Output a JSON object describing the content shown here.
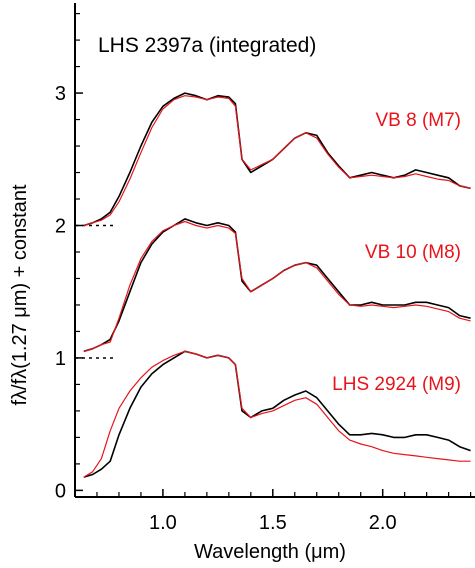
{
  "chart_data": {
    "type": "line",
    "title": "LHS 2397a (integrated)",
    "xlabel": "Wavelength (μm)",
    "ylabel": "fλ/fλ(1.27 μm) + constant",
    "xlim": [
      0.6,
      2.42
    ],
    "ylim": [
      -0.05,
      3.68
    ],
    "x_ticks": [
      1.0,
      1.5,
      2.0
    ],
    "x_tick_labels": [
      "1.0",
      "1.5",
      "2.0"
    ],
    "y_ticks": [
      0,
      1,
      2,
      3
    ],
    "y_tick_labels": [
      "0",
      "1",
      "2",
      "3"
    ],
    "grid": false,
    "legend": "none",
    "offsets": [
      2,
      1,
      0
    ],
    "colors": {
      "target": "#000000",
      "comparison": "#e8141b"
    },
    "annotations": [
      "VB 8 (M7)",
      "VB 10 (M8)",
      "LHS 2924 (M9)"
    ],
    "x": [
      0.64,
      0.68,
      0.72,
      0.76,
      0.8,
      0.85,
      0.9,
      0.95,
      1.0,
      1.05,
      1.1,
      1.15,
      1.2,
      1.25,
      1.3,
      1.33,
      1.36,
      1.4,
      1.45,
      1.5,
      1.55,
      1.6,
      1.65,
      1.7,
      1.75,
      1.8,
      1.85,
      1.9,
      1.95,
      2.0,
      2.05,
      2.1,
      2.15,
      2.2,
      2.25,
      2.3,
      2.35,
      2.4
    ],
    "series": [
      {
        "values": [
          0.0,
          0.02,
          0.05,
          0.1,
          0.22,
          0.4,
          0.6,
          0.78,
          0.9,
          0.96,
          1.0,
          0.98,
          0.95,
          0.98,
          0.97,
          0.92,
          0.5,
          0.4,
          0.45,
          0.5,
          0.58,
          0.66,
          0.7,
          0.68,
          0.55,
          0.45,
          0.36,
          0.38,
          0.4,
          0.38,
          0.36,
          0.38,
          0.42,
          0.4,
          0.38,
          0.36,
          0.3,
          0.28
        ]
      },
      {
        "values": [
          0.0,
          0.02,
          0.04,
          0.08,
          0.18,
          0.35,
          0.55,
          0.74,
          0.88,
          0.95,
          0.98,
          0.97,
          0.95,
          0.97,
          0.96,
          0.9,
          0.5,
          0.42,
          0.46,
          0.5,
          0.58,
          0.66,
          0.7,
          0.66,
          0.54,
          0.44,
          0.36,
          0.37,
          0.38,
          0.37,
          0.36,
          0.37,
          0.39,
          0.37,
          0.35,
          0.34,
          0.3,
          0.28
        ]
      },
      {
        "values": [
          0.05,
          0.07,
          0.1,
          0.14,
          0.28,
          0.5,
          0.72,
          0.86,
          0.95,
          1.0,
          1.05,
          1.02,
          1.0,
          1.02,
          1.0,
          0.95,
          0.58,
          0.5,
          0.55,
          0.6,
          0.66,
          0.7,
          0.72,
          0.7,
          0.6,
          0.5,
          0.4,
          0.4,
          0.42,
          0.4,
          0.4,
          0.4,
          0.42,
          0.42,
          0.4,
          0.38,
          0.32,
          0.3
        ]
      },
      {
        "values": [
          0.05,
          0.07,
          0.1,
          0.12,
          0.3,
          0.55,
          0.75,
          0.88,
          0.96,
          1.0,
          1.03,
          1.0,
          0.98,
          1.0,
          0.98,
          0.94,
          0.6,
          0.5,
          0.55,
          0.6,
          0.66,
          0.7,
          0.72,
          0.68,
          0.58,
          0.48,
          0.4,
          0.39,
          0.4,
          0.39,
          0.38,
          0.39,
          0.4,
          0.39,
          0.37,
          0.35,
          0.3,
          0.28
        ]
      },
      {
        "values": [
          0.1,
          0.12,
          0.16,
          0.22,
          0.42,
          0.62,
          0.78,
          0.88,
          0.95,
          1.0,
          1.05,
          1.03,
          1.0,
          1.02,
          1.0,
          0.95,
          0.6,
          0.55,
          0.6,
          0.62,
          0.68,
          0.72,
          0.75,
          0.7,
          0.6,
          0.5,
          0.42,
          0.42,
          0.43,
          0.42,
          0.4,
          0.4,
          0.42,
          0.42,
          0.4,
          0.38,
          0.33,
          0.3
        ]
      },
      {
        "values": [
          0.1,
          0.14,
          0.24,
          0.45,
          0.62,
          0.75,
          0.85,
          0.93,
          0.98,
          1.02,
          1.05,
          1.03,
          1.0,
          1.02,
          1.0,
          0.95,
          0.62,
          0.55,
          0.58,
          0.6,
          0.64,
          0.68,
          0.7,
          0.65,
          0.55,
          0.45,
          0.38,
          0.35,
          0.33,
          0.3,
          0.28,
          0.27,
          0.26,
          0.25,
          0.24,
          0.23,
          0.22,
          0.22
        ]
      }
    ]
  }
}
